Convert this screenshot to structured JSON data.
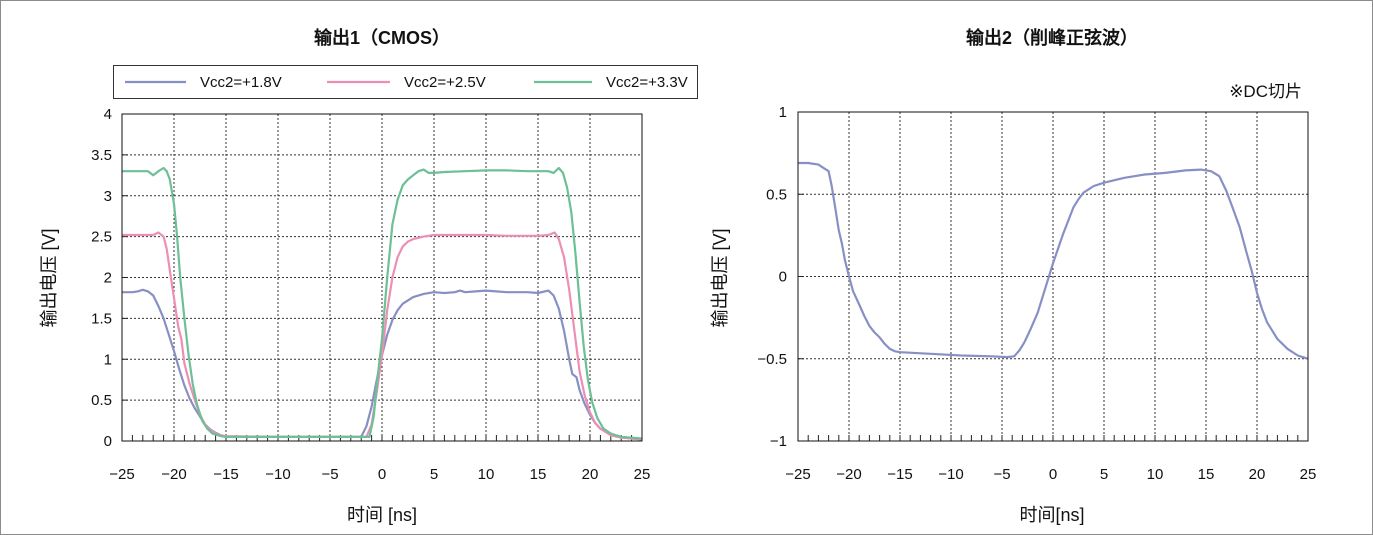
{
  "chart_data": [
    {
      "type": "line",
      "title": "输出1（CMOS）",
      "xlabel": "时间 [ns]",
      "ylabel": "输出电压 [V]",
      "xlim": [
        -25,
        25
      ],
      "ylim": [
        0,
        4
      ],
      "xticks": [
        -25,
        -20,
        -15,
        -10,
        -5,
        0,
        5,
        10,
        15,
        20,
        25
      ],
      "yticks": [
        0,
        0.5,
        1,
        1.5,
        2,
        2.5,
        3,
        3.5,
        4
      ],
      "grid": true,
      "legend": "top",
      "series": [
        {
          "name": "Vcc2=+1.8V",
          "color": "#8790c4",
          "points": [
            [
              -25,
              1.82
            ],
            [
              -24,
              1.82
            ],
            [
              -23.5,
              1.83
            ],
            [
              -23,
              1.85
            ],
            [
              -22.5,
              1.83
            ],
            [
              -22,
              1.78
            ],
            [
              -21.5,
              1.65
            ],
            [
              -21,
              1.5
            ],
            [
              -20.5,
              1.3
            ],
            [
              -20,
              1.1
            ],
            [
              -19.5,
              0.88
            ],
            [
              -19,
              0.68
            ],
            [
              -18.5,
              0.52
            ],
            [
              -18,
              0.4
            ],
            [
              -17.5,
              0.3
            ],
            [
              -17,
              0.2
            ],
            [
              -16.5,
              0.14
            ],
            [
              -16,
              0.1
            ],
            [
              -15.5,
              0.07
            ],
            [
              -15,
              0.05
            ],
            [
              -10,
              0.05
            ],
            [
              -5,
              0.05
            ],
            [
              -2,
              0.05
            ],
            [
              -1.5,
              0.18
            ],
            [
              -1,
              0.42
            ],
            [
              -0.5,
              0.75
            ],
            [
              0,
              1.05
            ],
            [
              0.5,
              1.3
            ],
            [
              1,
              1.48
            ],
            [
              1.5,
              1.6
            ],
            [
              2,
              1.68
            ],
            [
              3,
              1.76
            ],
            [
              4,
              1.8
            ],
            [
              5,
              1.82
            ],
            [
              6,
              1.81
            ],
            [
              7,
              1.82
            ],
            [
              7.5,
              1.84
            ],
            [
              8,
              1.82
            ],
            [
              9,
              1.83
            ],
            [
              10,
              1.84
            ],
            [
              11,
              1.83
            ],
            [
              12,
              1.82
            ],
            [
              14,
              1.82
            ],
            [
              15,
              1.81
            ],
            [
              16,
              1.84
            ],
            [
              16.5,
              1.78
            ],
            [
              17,
              1.62
            ],
            [
              17.5,
              1.35
            ],
            [
              18,
              1.0
            ],
            [
              18.3,
              0.82
            ],
            [
              18.7,
              0.78
            ],
            [
              19,
              0.62
            ],
            [
              19.5,
              0.45
            ],
            [
              20,
              0.32
            ],
            [
              20.5,
              0.22
            ],
            [
              21,
              0.15
            ],
            [
              22,
              0.08
            ],
            [
              23,
              0.05
            ],
            [
              24,
              0.03
            ],
            [
              25,
              0.02
            ]
          ]
        },
        {
          "name": "Vcc2=+2.5V",
          "color": "#ec8fb5",
          "points": [
            [
              -25,
              2.52
            ],
            [
              -24,
              2.52
            ],
            [
              -23,
              2.52
            ],
            [
              -22,
              2.52
            ],
            [
              -21.5,
              2.55
            ],
            [
              -21,
              2.5
            ],
            [
              -20.7,
              2.35
            ],
            [
              -20.3,
              2.0
            ],
            [
              -20,
              1.75
            ],
            [
              -19.6,
              1.4
            ],
            [
              -19.3,
              1.25
            ],
            [
              -19,
              0.95
            ],
            [
              -18.5,
              0.7
            ],
            [
              -18,
              0.5
            ],
            [
              -17.5,
              0.32
            ],
            [
              -17,
              0.2
            ],
            [
              -16.5,
              0.13
            ],
            [
              -16,
              0.09
            ],
            [
              -15.5,
              0.07
            ],
            [
              -15,
              0.06
            ],
            [
              -10,
              0.05
            ],
            [
              -5,
              0.05
            ],
            [
              -1.5,
              0.05
            ],
            [
              -1,
              0.2
            ],
            [
              -0.5,
              0.6
            ],
            [
              0,
              1.05
            ],
            [
              0.5,
              1.6
            ],
            [
              1,
              2.0
            ],
            [
              1.5,
              2.25
            ],
            [
              2,
              2.38
            ],
            [
              2.5,
              2.44
            ],
            [
              3,
              2.47
            ],
            [
              4,
              2.5
            ],
            [
              5,
              2.52
            ],
            [
              8,
              2.52
            ],
            [
              10,
              2.52
            ],
            [
              12,
              2.51
            ],
            [
              15,
              2.51
            ],
            [
              16,
              2.52
            ],
            [
              16.6,
              2.55
            ],
            [
              17,
              2.47
            ],
            [
              17.5,
              2.25
            ],
            [
              18,
              1.85
            ],
            [
              18.5,
              1.35
            ],
            [
              19,
              0.85
            ],
            [
              19.5,
              0.55
            ],
            [
              20,
              0.35
            ],
            [
              20.5,
              0.22
            ],
            [
              21,
              0.15
            ],
            [
              22,
              0.07
            ],
            [
              23,
              0.04
            ],
            [
              24,
              0.03
            ],
            [
              25,
              0.02
            ]
          ]
        },
        {
          "name": "Vcc2=+3.3V",
          "color": "#6dbf95",
          "points": [
            [
              -25,
              3.3
            ],
            [
              -23,
              3.3
            ],
            [
              -22.5,
              3.3
            ],
            [
              -22,
              3.25
            ],
            [
              -21.5,
              3.3
            ],
            [
              -21,
              3.34
            ],
            [
              -20.7,
              3.3
            ],
            [
              -20.4,
              3.2
            ],
            [
              -20,
              2.9
            ],
            [
              -19.7,
              2.5
            ],
            [
              -19.4,
              2.0
            ],
            [
              -19,
              1.5
            ],
            [
              -18.6,
              1.05
            ],
            [
              -18.2,
              0.7
            ],
            [
              -17.8,
              0.45
            ],
            [
              -17.3,
              0.25
            ],
            [
              -16.8,
              0.15
            ],
            [
              -16.3,
              0.09
            ],
            [
              -15.5,
              0.06
            ],
            [
              -15,
              0.05
            ],
            [
              -10,
              0.05
            ],
            [
              -5,
              0.05
            ],
            [
              -1.2,
              0.05
            ],
            [
              -0.8,
              0.3
            ],
            [
              -0.4,
              0.8
            ],
            [
              0,
              1.25
            ],
            [
              0.5,
              2.0
            ],
            [
              1,
              2.65
            ],
            [
              1.5,
              2.95
            ],
            [
              2,
              3.13
            ],
            [
              2.5,
              3.2
            ],
            [
              3,
              3.25
            ],
            [
              3.5,
              3.3
            ],
            [
              4,
              3.32
            ],
            [
              4.5,
              3.28
            ],
            [
              5,
              3.28
            ],
            [
              6,
              3.29
            ],
            [
              8,
              3.3
            ],
            [
              10,
              3.31
            ],
            [
              12,
              3.31
            ],
            [
              14,
              3.3
            ],
            [
              16,
              3.3
            ],
            [
              16.5,
              3.28
            ],
            [
              17,
              3.34
            ],
            [
              17.4,
              3.28
            ],
            [
              17.8,
              3.1
            ],
            [
              18.2,
              2.8
            ],
            [
              18.6,
              2.3
            ],
            [
              19,
              1.7
            ],
            [
              19.4,
              1.15
            ],
            [
              19.8,
              0.75
            ],
            [
              20.2,
              0.48
            ],
            [
              20.7,
              0.28
            ],
            [
              21.3,
              0.15
            ],
            [
              22,
              0.09
            ],
            [
              23,
              0.05
            ],
            [
              24,
              0.04
            ],
            [
              25,
              0.03
            ]
          ]
        }
      ]
    },
    {
      "type": "line",
      "title": "输出2（削峰正弦波）",
      "note": "※DC切片",
      "xlabel": "时间[ns]",
      "ylabel": "输出电压 [V]",
      "xlim": [
        -25,
        25
      ],
      "ylim": [
        -1,
        1
      ],
      "xticks": [
        -25,
        -20,
        -15,
        -10,
        -5,
        0,
        5,
        10,
        15,
        20,
        25
      ],
      "yticks": [
        -1,
        -0.5,
        0,
        0.5,
        1
      ],
      "grid": true,
      "series": [
        {
          "color": "#8790c4",
          "points": [
            [
              -25,
              0.69
            ],
            [
              -24,
              0.69
            ],
            [
              -23,
              0.68
            ],
            [
              -22.5,
              0.66
            ],
            [
              -22,
              0.64
            ],
            [
              -21.7,
              0.55
            ],
            [
              -21.3,
              0.4
            ],
            [
              -21,
              0.28
            ],
            [
              -20.7,
              0.2
            ],
            [
              -20.4,
              0.1
            ],
            [
              -20,
              0.0
            ],
            [
              -19.6,
              -0.09
            ],
            [
              -19,
              -0.17
            ],
            [
              -18.5,
              -0.24
            ],
            [
              -18,
              -0.3
            ],
            [
              -17.5,
              -0.34
            ],
            [
              -17,
              -0.37
            ],
            [
              -16.5,
              -0.41
            ],
            [
              -16,
              -0.44
            ],
            [
              -15.5,
              -0.455
            ],
            [
              -15,
              -0.46
            ],
            [
              -12,
              -0.47
            ],
            [
              -9,
              -0.48
            ],
            [
              -6,
              -0.485
            ],
            [
              -4.5,
              -0.49
            ],
            [
              -3.8,
              -0.485
            ],
            [
              -3.3,
              -0.45
            ],
            [
              -2.8,
              -0.4
            ],
            [
              -2.2,
              -0.32
            ],
            [
              -1.5,
              -0.22
            ],
            [
              -1,
              -0.12
            ],
            [
              -0.5,
              -0.02
            ],
            [
              0,
              0.08
            ],
            [
              0.5,
              0.17
            ],
            [
              1,
              0.26
            ],
            [
              1.5,
              0.34
            ],
            [
              2,
              0.42
            ],
            [
              2.5,
              0.47
            ],
            [
              3,
              0.51
            ],
            [
              4,
              0.55
            ],
            [
              5,
              0.57
            ],
            [
              7,
              0.6
            ],
            [
              9,
              0.62
            ],
            [
              11,
              0.63
            ],
            [
              13,
              0.645
            ],
            [
              14.5,
              0.65
            ],
            [
              15.5,
              0.64
            ],
            [
              16.3,
              0.61
            ],
            [
              17,
              0.52
            ],
            [
              17.6,
              0.42
            ],
            [
              18.3,
              0.3
            ],
            [
              19,
              0.14
            ],
            [
              19.5,
              0.03
            ],
            [
              20,
              -0.1
            ],
            [
              20.5,
              -0.2
            ],
            [
              21,
              -0.28
            ],
            [
              22,
              -0.38
            ],
            [
              23,
              -0.44
            ],
            [
              24,
              -0.48
            ],
            [
              25,
              -0.5
            ]
          ]
        }
      ]
    }
  ]
}
